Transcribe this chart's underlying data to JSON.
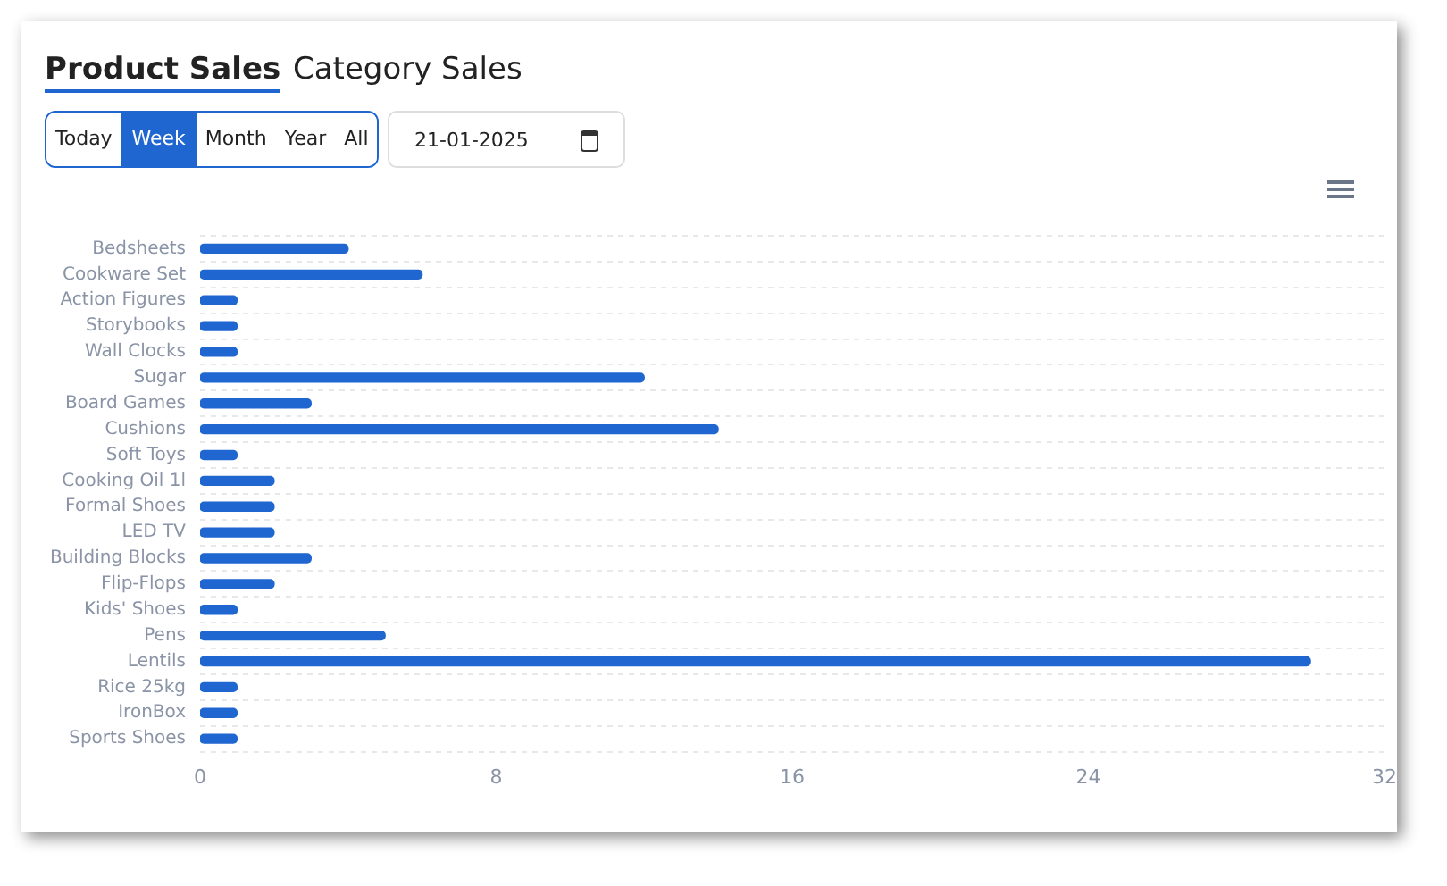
{
  "chart_data": {
    "type": "bar",
    "orientation": "horizontal",
    "title": "Product Sales",
    "annotations": [
      "Category Sales",
      "Today",
      "Week",
      "Month",
      "Year",
      "All",
      "21-01-2025"
    ],
    "categories": [
      "Bedsheets",
      "Cookware Set",
      "Action Figures",
      "Storybooks",
      "Wall Clocks",
      "Sugar",
      "Board Games",
      "Cushions",
      "Soft Toys",
      "Cooking Oil 1l",
      "Formal Shoes",
      "LED TV",
      "Building Blocks",
      "Flip-Flops",
      "Kids' Shoes",
      "Pens",
      "Lentils",
      "Rice 25kg",
      "IronBox",
      "Sports Shoes"
    ],
    "values": [
      4,
      6,
      1,
      1,
      1,
      12,
      3,
      14,
      1,
      2,
      2,
      2,
      3,
      2,
      1,
      5,
      30,
      1,
      1,
      1
    ],
    "color": "#1f66d1",
    "xlim": [
      0,
      32
    ],
    "xticks": [
      0,
      8,
      16,
      24,
      32
    ],
    "grid": "y",
    "legend": false
  }
}
